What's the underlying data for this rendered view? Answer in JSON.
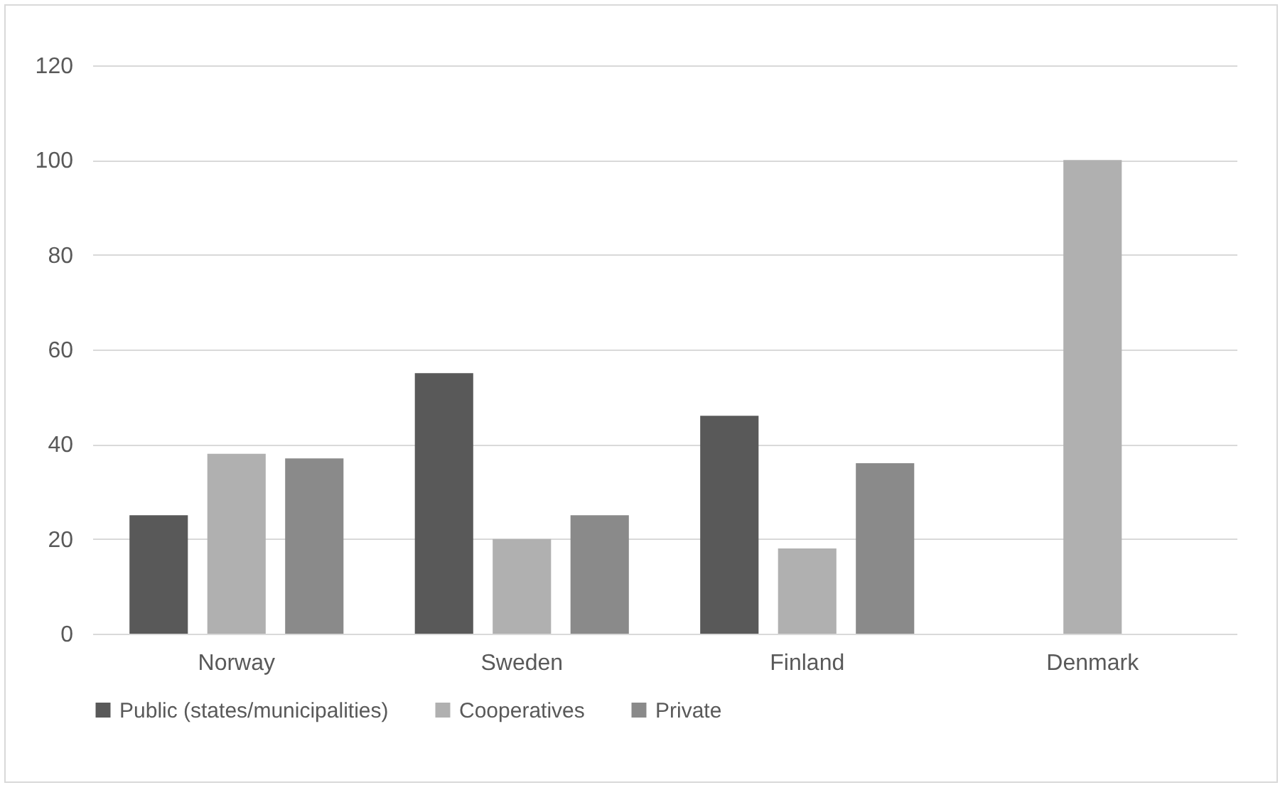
{
  "chart_data": {
    "type": "bar",
    "categories": [
      "Norway",
      "Sweden",
      "Finland",
      "Denmark"
    ],
    "series": [
      {
        "name": "Public (states/municipalities)",
        "color": "#595959",
        "values": [
          25,
          55,
          46,
          null
        ]
      },
      {
        "name": "Cooperatives",
        "color": "#b0b0b0",
        "values": [
          38,
          20,
          18,
          100
        ]
      },
      {
        "name": "Private",
        "color": "#8a8a8a",
        "values": [
          37,
          25,
          36,
          null
        ]
      }
    ],
    "ylim": [
      0,
      120
    ],
    "yticks": [
      0,
      20,
      40,
      60,
      80,
      100,
      120
    ],
    "grid": "y",
    "legend": "bottom"
  }
}
